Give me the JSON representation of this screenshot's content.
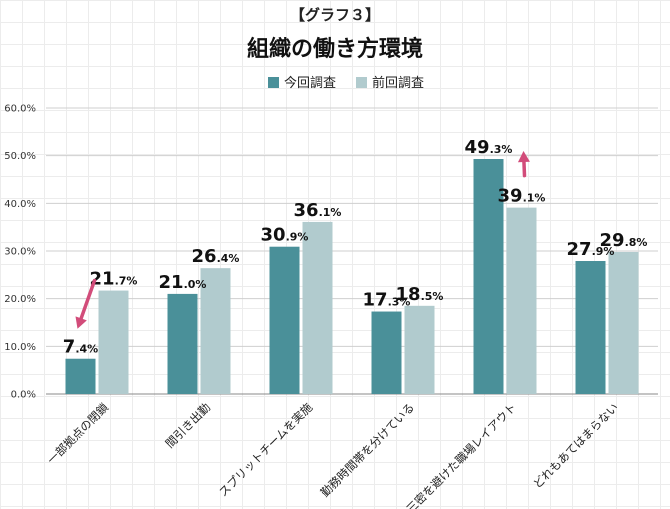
{
  "chart_data": {
    "type": "bar",
    "subtitle": "【グラフ３】",
    "title": "組織の働き方環境",
    "categories": [
      "一部拠点の閉鎖",
      "間引き出勤",
      "スプリットチームを実施",
      "勤務時間帯を分けている",
      "三密を避けた職場レイアウト",
      "どれもあてはまらない"
    ],
    "series": [
      {
        "name": "今回調査",
        "values": [
          7.4,
          21.0,
          30.9,
          17.3,
          49.3,
          27.9
        ]
      },
      {
        "name": "前回調査",
        "values": [
          21.7,
          26.4,
          36.1,
          18.5,
          39.1,
          29.8
        ]
      }
    ],
    "yticks": [
      "0.0%",
      "10.0%",
      "20.0%",
      "30.0%",
      "40.0%",
      "50.0%",
      "60.0%"
    ],
    "ylim": [
      0,
      60
    ],
    "legend_position": "top-center",
    "grid": true,
    "colors": {
      "series_current": "#4a9099",
      "series_previous": "#b1cbce",
      "arrow": "#d24c7a"
    }
  }
}
